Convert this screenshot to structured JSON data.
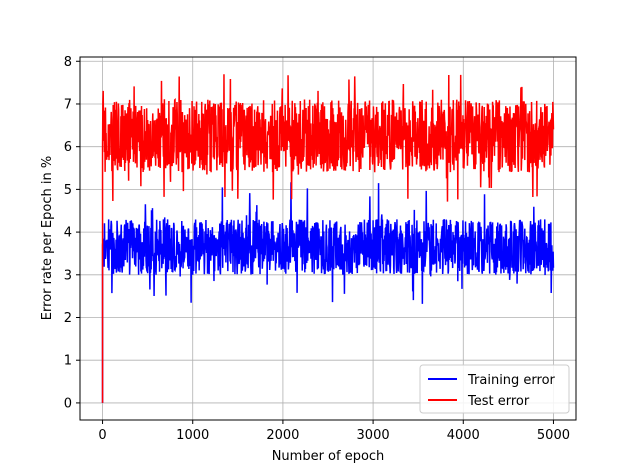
{
  "chart_data": {
    "type": "line",
    "title": "",
    "xlabel": "Number of epoch",
    "ylabel": "Error rate per Epoch in %",
    "xlim": [
      -250,
      5250
    ],
    "ylim": [
      -0.4,
      8.1
    ],
    "x_ticks": [
      0,
      1000,
      2000,
      3000,
      4000,
      5000
    ],
    "y_ticks": [
      0,
      1,
      2,
      3,
      4,
      5,
      6,
      7,
      8
    ],
    "x_tick_labels": [
      "0",
      "1000",
      "2000",
      "3000",
      "4000",
      "5000"
    ],
    "y_tick_labels": [
      "0",
      "1",
      "2",
      "3",
      "4",
      "5",
      "6",
      "7",
      "8"
    ],
    "grid": true,
    "legend_position": "bottom-right",
    "x_range": [
      0,
      5000
    ],
    "series": [
      {
        "name": "Training error",
        "color": "#0000ff",
        "start_value": 0,
        "typical_min": 3.0,
        "typical_max": 4.3,
        "extreme_min": 2.3,
        "extreme_max": 5.3,
        "mean": 3.6
      },
      {
        "name": "Test error",
        "color": "#ff0000",
        "start_value": 0,
        "typical_min": 5.4,
        "typical_max": 7.1,
        "extreme_min": 4.7,
        "extreme_max": 7.7,
        "mean": 6.2
      }
    ]
  }
}
